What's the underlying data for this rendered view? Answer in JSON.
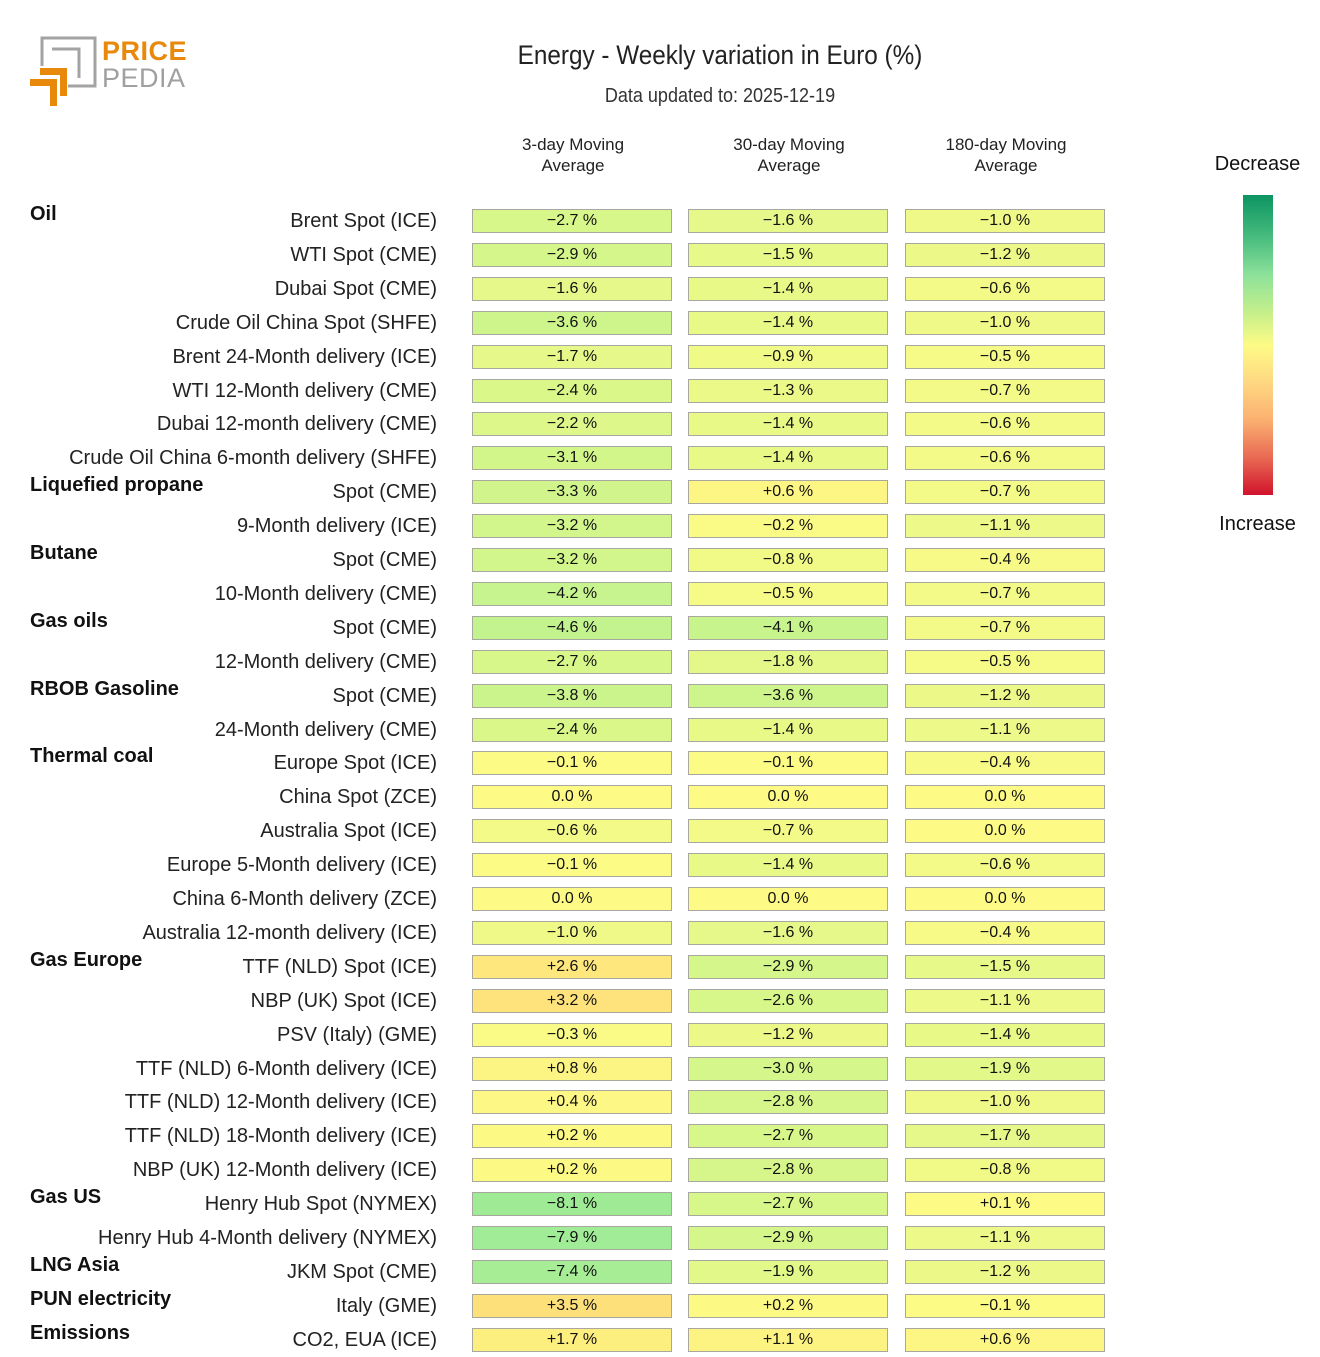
{
  "header": {
    "logo_line1": "PRICE",
    "logo_line2": "PEDIA",
    "title": "Energy - Weekly variation in Euro (%)",
    "subtitle": "Data updated to: 2025-12-19"
  },
  "legend": {
    "top_label": "Decrease",
    "bottom_label": "Increase",
    "colors": [
      "#0c9462",
      "#8ee29a",
      "#fdfb86",
      "#fbb070",
      "#d0122c"
    ]
  },
  "chart_data": {
    "type": "heatmap",
    "title": "Energy - Weekly variation in Euro (%)",
    "subtitle": "Data updated to: 2025-12-19",
    "columns": [
      "3-day Moving Average",
      "30-day Moving Average",
      "180-day Moving Average"
    ],
    "column_lines": [
      [
        "3-day Moving",
        "Average"
      ],
      [
        "30-day Moving",
        "Average"
      ],
      [
        "180-day Moving",
        "Average"
      ]
    ],
    "unit": "%",
    "colorscale": "green (decrease) - yellow (0) - red (increase)",
    "rows": [
      {
        "group": "Oil",
        "label": "Brent Spot (ICE)",
        "values": [
          -2.7,
          -1.6,
          -1.0
        ]
      },
      {
        "group": "",
        "label": "WTI Spot (CME)",
        "values": [
          -2.9,
          -1.5,
          -1.2
        ]
      },
      {
        "group": "",
        "label": "Dubai Spot (CME)",
        "values": [
          -1.6,
          -1.4,
          -0.6
        ]
      },
      {
        "group": "",
        "label": "Crude Oil China Spot (SHFE)",
        "values": [
          -3.6,
          -1.4,
          -1.0
        ]
      },
      {
        "group": "",
        "label": "Brent 24-Month delivery (ICE)",
        "values": [
          -1.7,
          -0.9,
          -0.5
        ]
      },
      {
        "group": "",
        "label": "WTI 12-Month delivery (CME)",
        "values": [
          -2.4,
          -1.3,
          -0.7
        ]
      },
      {
        "group": "",
        "label": "Dubai 12-month delivery (CME)",
        "values": [
          -2.2,
          -1.4,
          -0.6
        ]
      },
      {
        "group": "",
        "label": "Crude Oil China 6-month delivery (SHFE)",
        "values": [
          -3.1,
          -1.4,
          -0.6
        ]
      },
      {
        "group": "Liquefied propane",
        "label": "Spot (CME)",
        "values": [
          -3.3,
          0.6,
          -0.7
        ]
      },
      {
        "group": "",
        "label": "9-Month delivery (ICE)",
        "values": [
          -3.2,
          -0.2,
          -1.1
        ]
      },
      {
        "group": "Butane",
        "label": "Spot (CME)",
        "values": [
          -3.2,
          -0.8,
          -0.4
        ]
      },
      {
        "group": "",
        "label": "10-Month delivery (CME)",
        "values": [
          -4.2,
          -0.5,
          -0.7
        ]
      },
      {
        "group": "Gas oils",
        "label": "Spot (CME)",
        "values": [
          -4.6,
          -4.1,
          -0.7
        ]
      },
      {
        "group": "",
        "label": "12-Month delivery (CME)",
        "values": [
          -2.7,
          -1.8,
          -0.5
        ]
      },
      {
        "group": "RBOB Gasoline",
        "label": "Spot (CME)",
        "values": [
          -3.8,
          -3.6,
          -1.2
        ]
      },
      {
        "group": "",
        "label": "24-Month delivery (CME)",
        "values": [
          -2.4,
          -1.4,
          -1.1
        ]
      },
      {
        "group": "Thermal coal",
        "label": "Europe Spot (ICE)",
        "values": [
          -0.1,
          -0.1,
          -0.4
        ]
      },
      {
        "group": "",
        "label": "China Spot (ZCE)",
        "values": [
          0.0,
          0.0,
          0.0
        ]
      },
      {
        "group": "",
        "label": "Australia Spot (ICE)",
        "values": [
          -0.6,
          -0.7,
          0.0
        ]
      },
      {
        "group": "",
        "label": "Europe 5-Month delivery (ICE)",
        "values": [
          -0.1,
          -1.4,
          -0.6
        ]
      },
      {
        "group": "",
        "label": "China 6-Month delivery (ZCE)",
        "values": [
          0.0,
          0.0,
          0.0
        ]
      },
      {
        "group": "",
        "label": "Australia 12-month delivery (ICE)",
        "values": [
          -1.0,
          -1.6,
          -0.4
        ]
      },
      {
        "group": "Gas Europe",
        "label": "TTF (NLD) Spot (ICE)",
        "values": [
          2.6,
          -2.9,
          -1.5
        ]
      },
      {
        "group": "",
        "label": "NBP (UK) Spot (ICE)",
        "values": [
          3.2,
          -2.6,
          -1.1
        ]
      },
      {
        "group": "",
        "label": "PSV (Italy) (GME)",
        "values": [
          -0.3,
          -1.2,
          -1.4
        ]
      },
      {
        "group": "",
        "label": "TTF (NLD) 6-Month delivery (ICE)",
        "values": [
          0.8,
          -3.0,
          -1.9
        ]
      },
      {
        "group": "",
        "label": "TTF (NLD) 12-Month delivery (ICE)",
        "values": [
          0.4,
          -2.8,
          -1.0
        ]
      },
      {
        "group": "",
        "label": "TTF (NLD) 18-Month delivery (ICE)",
        "values": [
          0.2,
          -2.7,
          -1.7
        ]
      },
      {
        "group": "",
        "label": "NBP (UK) 12-Month delivery (ICE)",
        "values": [
          0.2,
          -2.8,
          -0.8
        ]
      },
      {
        "group": "Gas US",
        "label": "Henry Hub Spot (NYMEX)",
        "values": [
          -8.1,
          -2.7,
          0.1
        ]
      },
      {
        "group": "",
        "label": "Henry Hub 4-Month delivery (NYMEX)",
        "values": [
          -7.9,
          -2.9,
          -1.1
        ]
      },
      {
        "group": "LNG Asia",
        "label": "JKM Spot (CME)",
        "values": [
          -7.4,
          -1.9,
          -1.2
        ]
      },
      {
        "group": "PUN electricity",
        "label": "Italy (GME)",
        "values": [
          3.5,
          0.2,
          -0.1
        ]
      },
      {
        "group": "Emissions",
        "label": "CO2, EUA (ICE)",
        "values": [
          1.7,
          1.1,
          0.6
        ]
      }
    ]
  }
}
